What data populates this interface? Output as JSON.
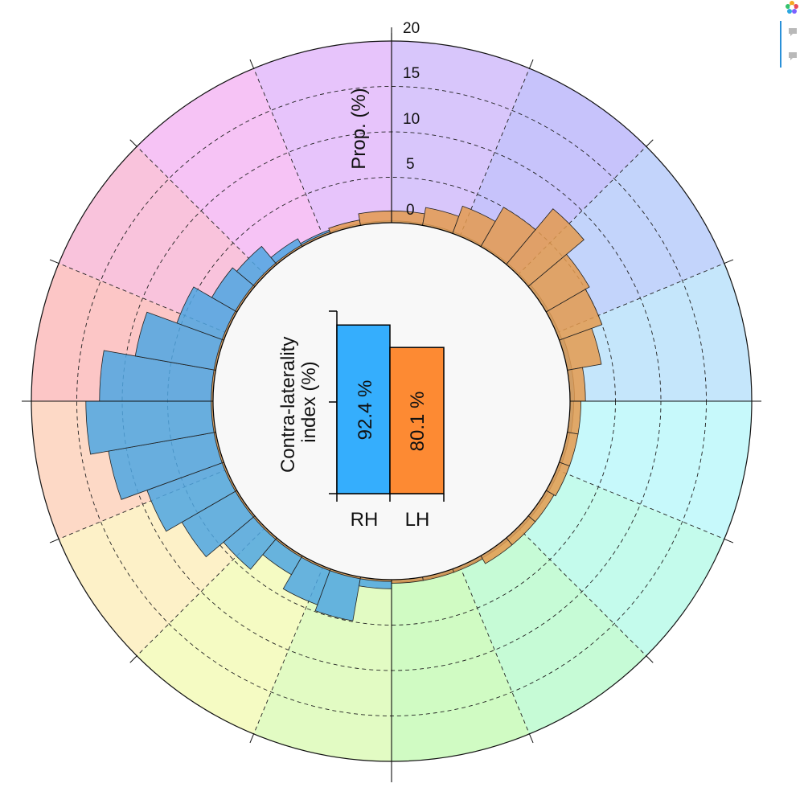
{
  "chart_data": {
    "type": "circular-bar",
    "radial_axis": {
      "label": "Prop. (%)",
      "ticks": [
        "0",
        "5",
        "10",
        "15",
        "20"
      ],
      "range": [
        0,
        20
      ],
      "gridlines": "dashed"
    },
    "sectors": [
      {
        "color": "#d8c6fb"
      },
      {
        "color": "#c7c3fb"
      },
      {
        "color": "#c3d4fb"
      },
      {
        "color": "#c5e6fb"
      },
      {
        "color": "#c7f9fb"
      },
      {
        "color": "#c4fbec"
      },
      {
        "color": "#c6fbd6"
      },
      {
        "color": "#d0fbc3"
      },
      {
        "color": "#e2fbc3"
      },
      {
        "color": "#f5fbc3"
      },
      {
        "color": "#fdf1c8"
      },
      {
        "color": "#fdd9c6"
      },
      {
        "color": "#fcc6c6"
      },
      {
        "color": "#f9c3dc"
      },
      {
        "color": "#f6c3f5"
      },
      {
        "color": "#e7c4fb"
      }
    ],
    "series": [
      {
        "name": "RH",
        "color": "#4ea6e2",
        "values": [
          1.0,
          4.9,
          4.2,
          2.4,
          4.5,
          7.0,
          9.0,
          12.0,
          14.0,
          12.5,
          9.0,
          5.5,
          3.2,
          2.6,
          1.0,
          0.4,
          0.2,
          0.2,
          0.2,
          0.2,
          0.2,
          0.2,
          0.2,
          0.3,
          0.3,
          0.5,
          0.5,
          0.4,
          0.3,
          0.3,
          0.3,
          0.3,
          0.3,
          0.3,
          0.3,
          0.3
        ]
      },
      {
        "name": "LH",
        "color": "#e49a4e",
        "values": [
          0.2,
          0.2,
          0.2,
          0.2,
          0.2,
          0.2,
          0.2,
          0.2,
          0.2,
          0.2,
          0.2,
          0.2,
          0.2,
          0.2,
          0.2,
          0.2,
          0.6,
          1.3,
          1.3,
          2.0,
          3.2,
          5.0,
          8.0,
          5.5,
          5.0,
          3.8,
          1.7,
          1.2,
          1.2,
          1.2,
          1.0,
          1.0,
          1.0,
          0.4,
          0.4,
          0.4
        ]
      }
    ],
    "inset": {
      "type": "bar",
      "ylabel": "Contra-laterality index (%)",
      "categories": [
        "RH",
        "LH"
      ],
      "values": [
        92.4,
        80.1
      ],
      "value_labels": [
        "92.4 %",
        "80.1 %"
      ],
      "colors": [
        "#35aefd",
        "#fd8a33"
      ],
      "ylim": [
        0,
        100
      ]
    }
  },
  "toolbar": {
    "logo_icon": "plotly-logo-icon",
    "buttons": [
      "comment-icon",
      "comment-icon"
    ],
    "accent": "#2a90d8"
  }
}
